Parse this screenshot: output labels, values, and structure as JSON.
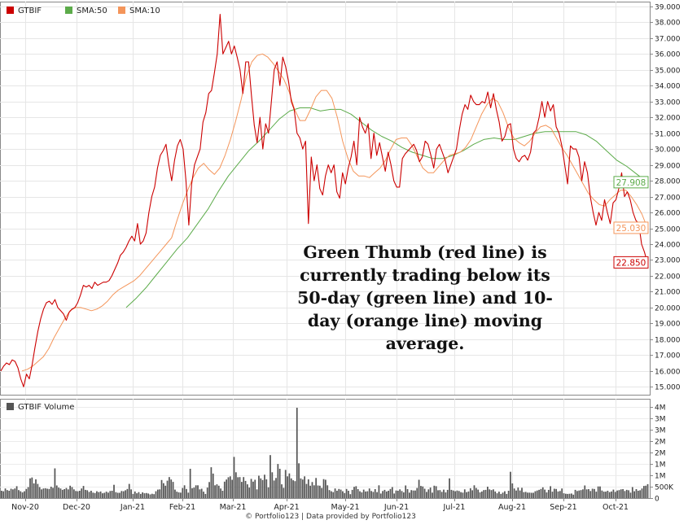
{
  "chart_data": [
    {
      "type": "line",
      "ylim": [
        14.5,
        39.3
      ],
      "y_ticks": [
        "39.000",
        "38.000",
        "37.000",
        "36.000",
        "35.000",
        "34.000",
        "33.000",
        "32.000",
        "31.000",
        "30.000",
        "29.000",
        "28.000",
        "27.000",
        "26.000",
        "25.000",
        "24.000",
        "23.000",
        "22.000",
        "21.000",
        "20.000",
        "19.000",
        "18.000",
        "17.000",
        "16.000",
        "15.000"
      ],
      "x_ticks": [
        "Nov-20",
        "Dec-20",
        "Jan-21",
        "Feb-21",
        "Mar-21",
        "Apr-21",
        "May-21",
        "Jun-21",
        "Jul-21",
        "Aug-21",
        "Sep-21",
        "Oct-21"
      ],
      "grid": true,
      "legend_position": "top-left",
      "series": [
        {
          "name": "GTBIF",
          "color": "#cc0000",
          "end_label": "22.850",
          "values": [
            16.0,
            16.3,
            16.5,
            16.4,
            16.7,
            16.6,
            16.2,
            15.5,
            15.0,
            15.8,
            15.5,
            16.4,
            17.5,
            18.5,
            19.3,
            19.9,
            20.3,
            20.4,
            20.2,
            20.5,
            20.0,
            19.8,
            19.6,
            19.2,
            19.7,
            19.9,
            20.0,
            20.3,
            20.8,
            21.4,
            21.3,
            21.4,
            21.2,
            21.6,
            21.4,
            21.5,
            21.6,
            21.6,
            21.7,
            22.0,
            22.4,
            22.8,
            23.3,
            23.5,
            23.8,
            24.2,
            24.5,
            24.2,
            25.3,
            24.0,
            24.2,
            24.7,
            26.0,
            27.0,
            27.6,
            28.8,
            29.6,
            29.9,
            30.3,
            29.0,
            28.0,
            29.3,
            30.2,
            30.6,
            30.0,
            28.0,
            25.2,
            27.8,
            29.0,
            29.5,
            30.0,
            31.7,
            32.3,
            33.5,
            33.7,
            34.8,
            36.0,
            38.5,
            36.0,
            36.4,
            36.8,
            36.0,
            36.5,
            35.8,
            35.0,
            33.5,
            35.5,
            35.5,
            33.4,
            31.5,
            30.4,
            32.0,
            30.0,
            31.6,
            31.0,
            33.0,
            35.0,
            35.5,
            34.0,
            35.8,
            35.2,
            34.3,
            33.0,
            32.5,
            31.0,
            30.7,
            30.0,
            30.5,
            25.3,
            29.5,
            28.0,
            29.0,
            27.5,
            27.1,
            28.3,
            29.0,
            28.5,
            29.0,
            27.3,
            26.9,
            28.5,
            27.8,
            28.8,
            29.5,
            30.5,
            29.0,
            32.0,
            31.4,
            31.0,
            31.6,
            29.4,
            31.0,
            29.6,
            30.4,
            29.5,
            28.6,
            29.8,
            29.0,
            28.0,
            27.6,
            27.6,
            29.4,
            29.7,
            29.9,
            30.1,
            30.3,
            29.9,
            29.2,
            29.5,
            30.5,
            30.3,
            29.6,
            28.8,
            30.0,
            30.3,
            29.8,
            29.3,
            28.5,
            29.0,
            29.5,
            30.0,
            31.2,
            32.2,
            32.8,
            32.5,
            33.4,
            33.0,
            32.8,
            32.8,
            33.0,
            32.9,
            33.6,
            32.6,
            33.5,
            32.5,
            31.7,
            30.5,
            30.8,
            31.5,
            31.6,
            30.0,
            29.4,
            29.2,
            29.5,
            29.6,
            29.3,
            29.8,
            31.0,
            31.2,
            32.0,
            33.0,
            32.0,
            33.0,
            32.4,
            32.8,
            31.4,
            31.0,
            30.2,
            29.0,
            27.8,
            30.2,
            30.0,
            30.0,
            29.5,
            28.0,
            29.2,
            28.5,
            27.0,
            26.0,
            25.2,
            26.0,
            25.5,
            26.8,
            26.0,
            25.3,
            26.6,
            26.8,
            27.5,
            28.5,
            27.0,
            27.3,
            26.8,
            26.0,
            25.5,
            25.3,
            24.0,
            23.5,
            22.85
          ]
        },
        {
          "name": "SMA:50",
          "color": "#5cab4a",
          "end_label": "27.908",
          "values": [
            20.0,
            20.6,
            21.3,
            22.1,
            22.9,
            23.7,
            24.4,
            25.3,
            26.2,
            27.3,
            28.3,
            29.1,
            29.9,
            30.5,
            31.2,
            31.9,
            32.4,
            32.6,
            32.6,
            32.4,
            32.5,
            32.5,
            32.2,
            31.7,
            31.2,
            30.8,
            30.5,
            30.1,
            29.8,
            29.6,
            29.4,
            29.4,
            29.6,
            29.9,
            30.3,
            30.6,
            30.7,
            30.6,
            30.6,
            30.8,
            31.0,
            31.1,
            31.1,
            31.1,
            31.1,
            30.9,
            30.5,
            29.9,
            29.3,
            28.9,
            28.4,
            27.908
          ]
        },
        {
          "name": "SMA:10",
          "color": "#f4955a",
          "end_label": "25.030",
          "values": [
            16.0,
            16.1,
            16.3,
            16.6,
            16.9,
            17.4,
            18.1,
            18.7,
            19.3,
            19.8,
            20.0,
            20.0,
            19.9,
            19.8,
            19.9,
            20.1,
            20.4,
            20.8,
            21.1,
            21.3,
            21.5,
            21.7,
            22.0,
            22.4,
            22.8,
            23.2,
            23.6,
            24.0,
            24.4,
            25.5,
            26.5,
            27.4,
            28.2,
            28.8,
            29.1,
            28.7,
            28.4,
            28.8,
            29.6,
            30.6,
            31.8,
            33.1,
            34.6,
            35.5,
            35.9,
            36.0,
            35.8,
            35.4,
            34.9,
            34.4,
            33.6,
            32.5,
            31.8,
            31.8,
            32.5,
            33.3,
            33.7,
            33.7,
            33.2,
            32.0,
            30.5,
            29.4,
            28.6,
            28.3,
            28.3,
            28.2,
            28.5,
            28.8,
            29.3,
            30.0,
            30.6,
            30.7,
            30.7,
            30.2,
            29.5,
            28.8,
            28.5,
            28.5,
            28.9,
            29.3,
            29.6,
            29.7,
            29.8,
            30.1,
            30.6,
            31.4,
            32.2,
            32.8,
            33.2,
            33.0,
            32.3,
            31.4,
            30.7,
            30.4,
            30.2,
            30.5,
            31.0,
            31.4,
            31.5,
            31.3,
            30.7,
            30.1,
            29.6,
            29.0,
            28.4,
            27.8,
            27.2,
            26.8,
            26.5,
            26.4,
            26.8,
            27.1,
            27.4,
            27.4,
            27.0,
            26.5,
            25.9,
            25.03
          ]
        }
      ]
    },
    {
      "type": "bar",
      "title": "GTBIF Volume",
      "y_ticks": [
        "4M",
        "3M",
        "3M",
        "2M",
        "2M",
        "1M",
        "1M",
        "500K",
        "0"
      ],
      "ylim": [
        0,
        4200000
      ],
      "color": "#555555",
      "values": [
        320000,
        300000,
        420000,
        350000,
        320000,
        410000,
        380000,
        420000,
        520000,
        350000,
        300000,
        250000,
        300000,
        400000,
        480000,
        860000,
        900000,
        640000,
        820000,
        620000,
        480000,
        380000,
        420000,
        430000,
        410000,
        400000,
        500000,
        450000,
        1300000,
        550000,
        460000,
        420000,
        360000,
        390000,
        440000,
        380000,
        540000,
        480000,
        380000,
        310000,
        300000,
        320000,
        420000,
        530000,
        360000,
        340000,
        270000,
        320000,
        240000,
        220000,
        300000,
        260000,
        290000,
        210000,
        230000,
        280000,
        240000,
        310000,
        320000,
        580000,
        260000,
        230000,
        230000,
        310000,
        300000,
        340000,
        400000,
        620000,
        380000,
        180000,
        290000,
        210000,
        260000,
        180000,
        250000,
        210000,
        220000,
        200000,
        160000,
        190000,
        170000,
        300000,
        370000,
        380000,
        790000,
        650000,
        540000,
        760000,
        920000,
        810000,
        710000,
        370000,
        280000,
        250000,
        240000,
        440000,
        560000,
        400000,
        240000,
        1280000,
        430000,
        460000,
        560000,
        560000,
        380000,
        410000,
        280000,
        180000,
        460000,
        700000,
        1350000,
        1070000,
        560000,
        600000,
        540000,
        420000,
        320000,
        720000,
        810000,
        910000,
        950000,
        800000,
        1800000,
        1130000,
        910000,
        920000,
        710000,
        920000,
        750000,
        600000,
        460000,
        840000,
        720000,
        800000,
        380000,
        980000,
        860000,
        790000,
        1020000,
        820000,
        470000,
        1880000,
        1130000,
        770000,
        880000,
        1490000,
        1280000,
        600000,
        450000,
        1230000,
        950000,
        1080000,
        860000,
        780000,
        740000,
        3950000,
        1520000,
        860000,
        810000,
        950000,
        620000,
        820000,
        540000,
        700000,
        560000,
        880000,
        550000,
        540000,
        440000,
        830000,
        800000,
        560000,
        350000,
        300000,
        260000,
        420000,
        320000,
        400000,
        370000,
        300000,
        220000,
        400000,
        320000,
        170000,
        360000,
        490000,
        520000,
        390000,
        300000,
        250000,
        370000,
        290000,
        300000,
        420000,
        310000,
        270000,
        390000,
        260000,
        560000,
        200000,
        310000,
        360000,
        290000,
        320000,
        400000,
        480000,
        200000,
        330000,
        320000,
        380000,
        310000,
        250000,
        550000,
        390000,
        240000,
        350000,
        330000,
        330000,
        440000,
        800000,
        530000,
        510000,
        410000,
        270000,
        380000,
        460000,
        240000,
        540000,
        520000,
        340000,
        350000,
        270000,
        370000,
        250000,
        360000,
        860000,
        360000,
        330000,
        300000,
        330000,
        310000,
        260000,
        240000,
        380000,
        260000,
        290000,
        430000,
        340000,
        560000,
        440000,
        370000,
        250000,
        290000,
        350000,
        360000,
        500000,
        380000,
        350000,
        380000,
        290000,
        210000,
        280000,
        180000,
        240000,
        300000,
        180000,
        320000,
        1150000,
        640000,
        420000,
        330000,
        460000,
        330000,
        450000,
        260000,
        270000,
        240000,
        240000,
        230000,
        230000,
        300000,
        330000,
        360000,
        400000,
        470000,
        370000,
        250000,
        360000,
        520000,
        280000,
        410000,
        400000,
        290000,
        310000,
        420000,
        210000,
        190000,
        180000,
        190000,
        200000,
        150000,
        360000,
        310000,
        330000,
        350000,
        380000,
        550000,
        380000,
        390000,
        310000,
        410000,
        400000,
        280000,
        510000,
        510000,
        330000,
        280000,
        280000,
        320000,
        260000,
        290000,
        370000,
        270000,
        330000,
        350000,
        380000,
        390000,
        310000,
        360000,
        340000,
        240000,
        480000,
        300000,
        390000,
        320000,
        340000,
        420000,
        530000,
        540000,
        610000
      ]
    }
  ],
  "legend": {
    "gtbif": "GTBIF",
    "sma50": "SMA:50",
    "sma10": "SMA:10"
  },
  "annotation": "Green Thumb (red line) is currently trading below its 50-day (green line) and 10-day (orange line) moving average.",
  "footer": "© Portfolio123 | Data provided by Portfolio123"
}
